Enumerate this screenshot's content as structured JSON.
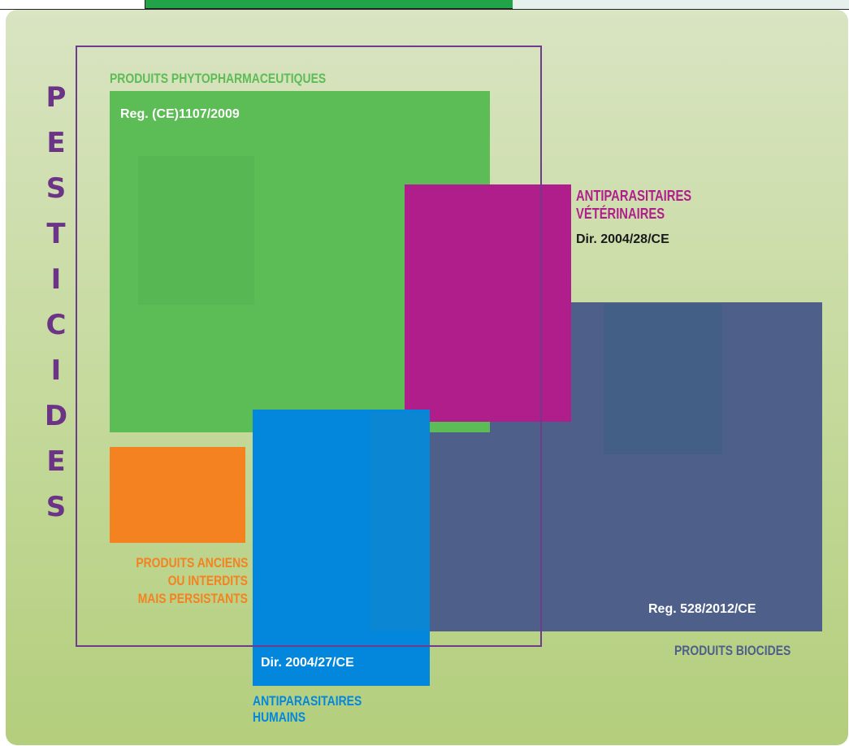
{
  "header_strip": {
    "accent_color": "#21a347"
  },
  "vertical_title": {
    "letters": [
      "P",
      "E",
      "S",
      "T",
      "I",
      "C",
      "I",
      "D",
      "E",
      "S"
    ],
    "color": "#6b3487"
  },
  "phyto": {
    "title": "PRODUITS PHYTOPHARMACEUTIQUES",
    "reg": "Reg. (CE)1107/2009",
    "color": "#5cbc55"
  },
  "veterinaires": {
    "title_line1": "ANTIPARASITAIRES",
    "title_line2": "VÉTÉRINAIRES",
    "reg": "Dir. 2004/28/CE",
    "color": "#b01e8c"
  },
  "biocides": {
    "title": "PRODUITS BIOCIDES",
    "reg": "Reg. 528/2012/CE",
    "color": "#4e5f8a"
  },
  "humains": {
    "title_line1": "ANTIPARASITAIRES",
    "title_line2": "HUMAINS",
    "reg": "Dir. 2004/27/CE",
    "color": "#0387dc"
  },
  "anciens": {
    "line1": "PRODUITS ANCIENS",
    "line2": "OU INTERDITS",
    "line3": "MAIS PERSISTANTS",
    "color": "#f58220"
  },
  "pesticides_outline_color": "#6f3b8c"
}
